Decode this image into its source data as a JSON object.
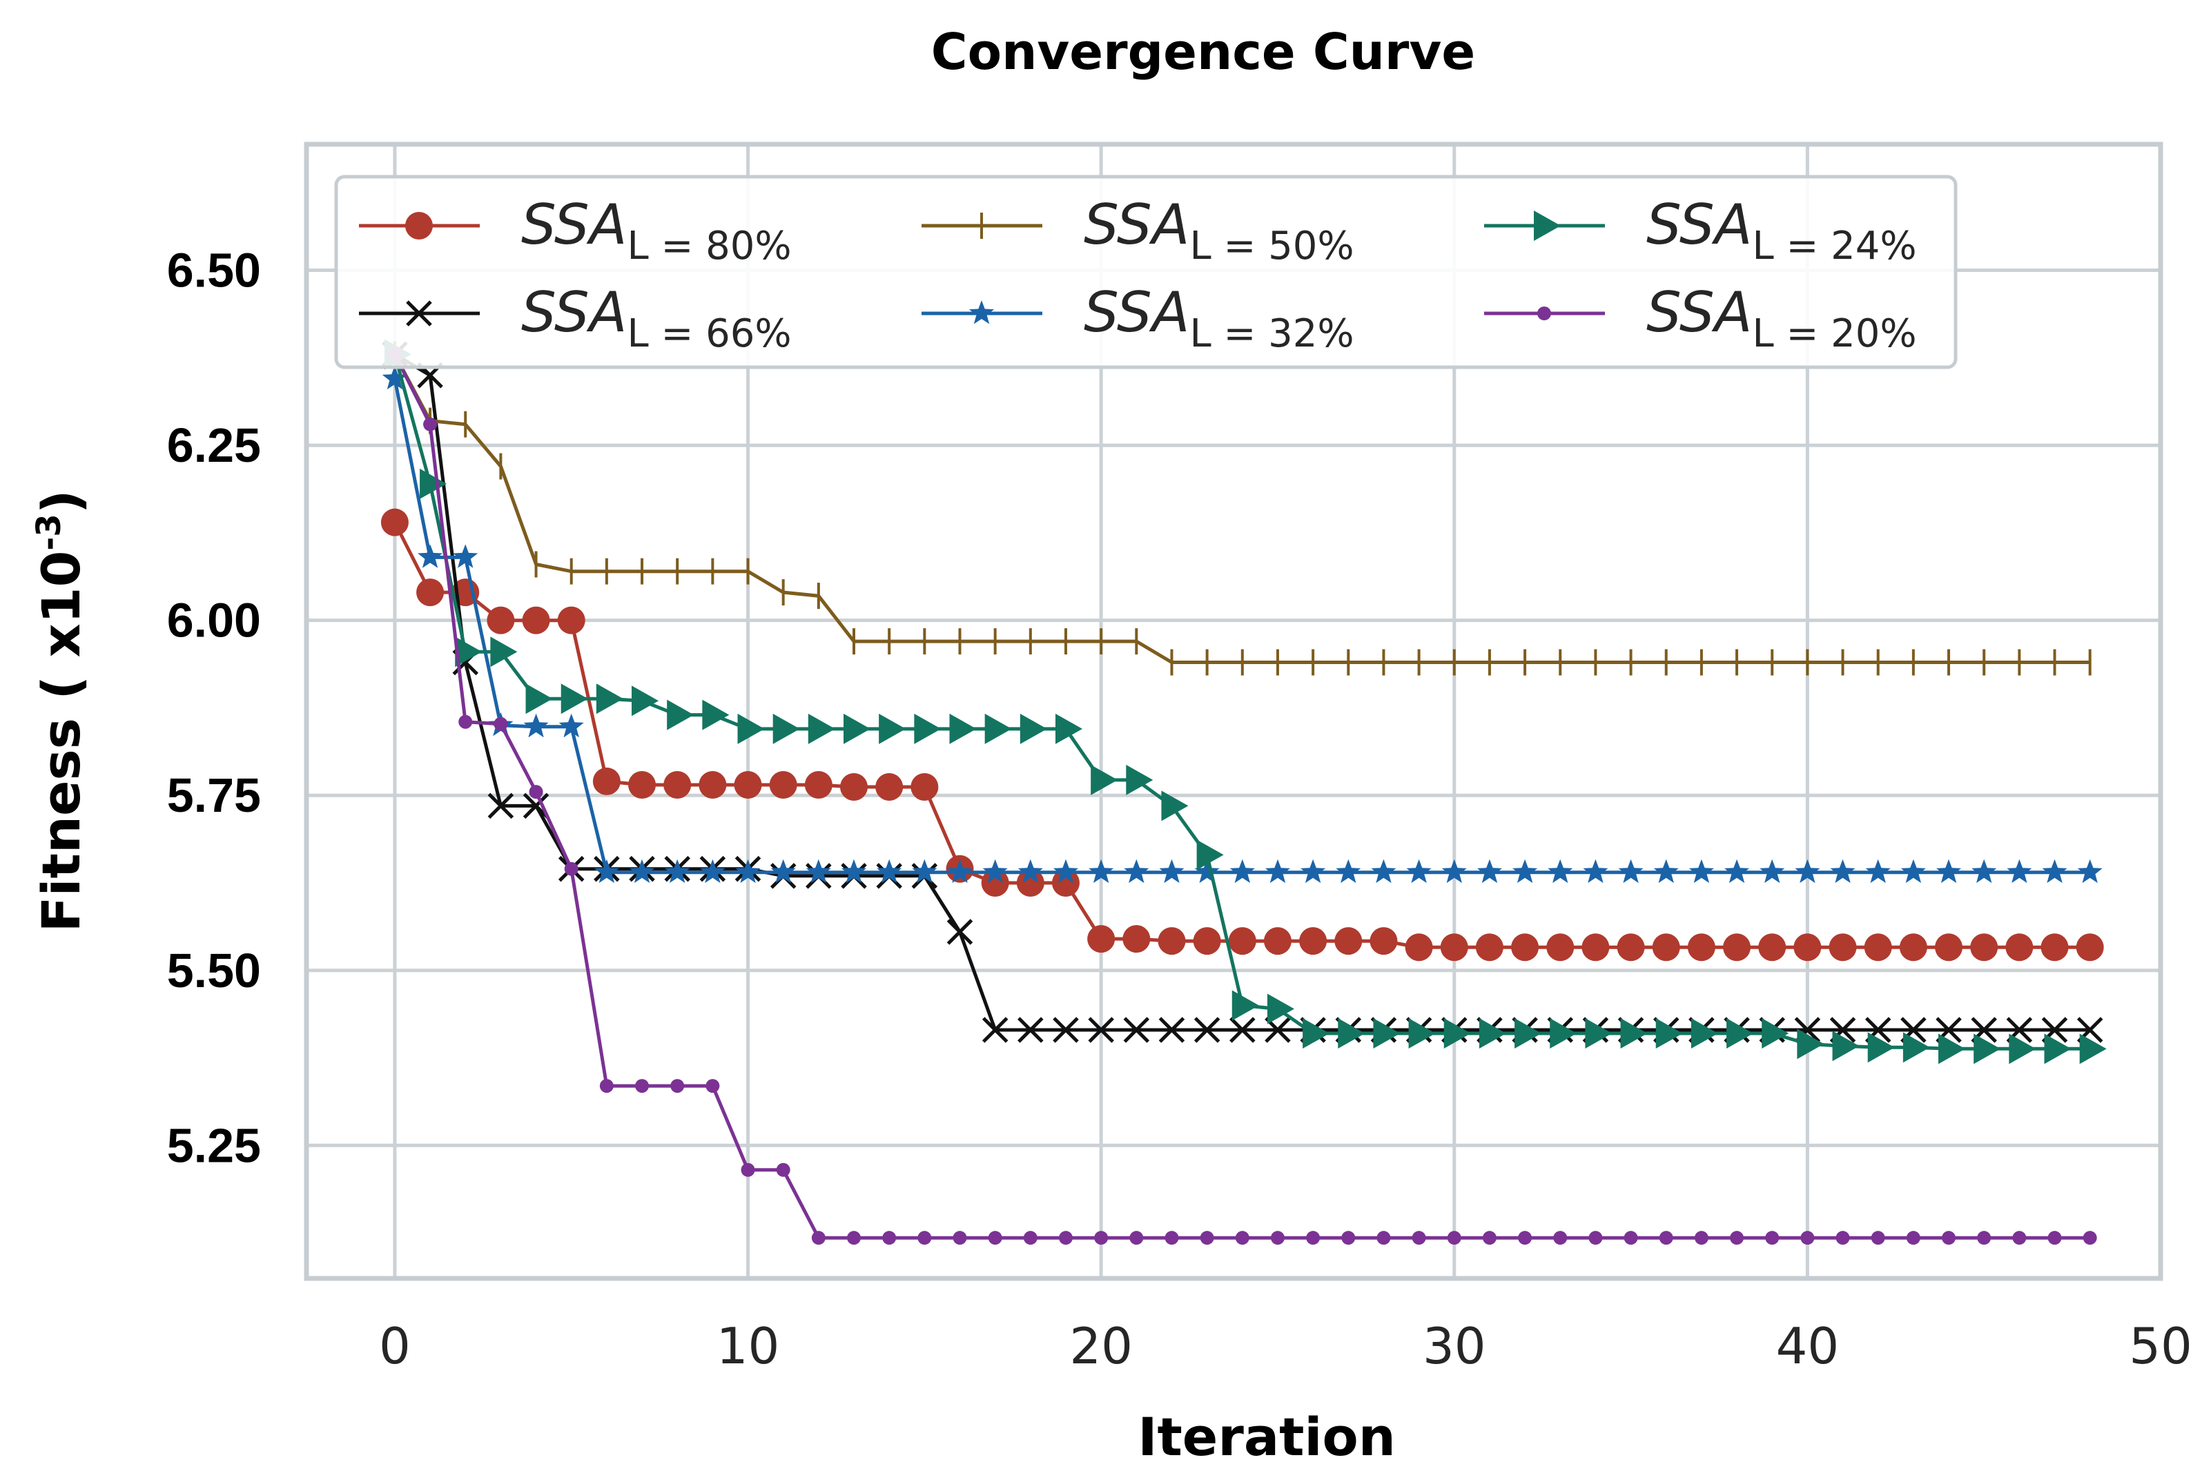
{
  "chart_data": {
    "type": "line",
    "title": "Convergence Curve",
    "xlabel": "Iteration",
    "ylabel": "Fitness ( x10",
    "ylabel_exponent": "-3",
    "ylabel_close": ")",
    "xlim": [
      -2.5,
      50
    ],
    "ylim": [
      5.06,
      6.68
    ],
    "xticks": [
      0,
      10,
      20,
      30,
      40,
      50
    ],
    "xtick_labels": [
      "0",
      "10",
      "20",
      "30",
      "40",
      "50"
    ],
    "yticks": [
      5.25,
      5.5,
      5.75,
      6.0,
      6.25,
      6.5
    ],
    "ytick_labels": [
      "5.25",
      "5.50",
      "5.75",
      "6.00",
      "6.25",
      "6.50"
    ],
    "grid": true,
    "legend_position": "top",
    "series": [
      {
        "name": "SSA",
        "sub": "L = 80%",
        "color": "#b03a2e",
        "marker": "circle",
        "values": [
          6.14,
          6.04,
          6.04,
          6.0,
          6.0,
          6.0,
          5.77,
          5.765,
          5.765,
          5.765,
          5.765,
          5.765,
          5.765,
          5.762,
          5.762,
          5.762,
          5.645,
          5.625,
          5.625,
          5.625,
          5.545,
          5.545,
          5.542,
          5.542,
          5.542,
          5.542,
          5.542,
          5.542,
          5.542,
          5.533,
          5.533,
          5.533,
          5.533,
          5.533,
          5.533,
          5.533,
          5.533,
          5.533,
          5.533,
          5.533,
          5.533,
          5.533,
          5.533,
          5.533,
          5.533,
          5.533,
          5.533,
          5.533,
          5.533
        ]
      },
      {
        "name": "SSA",
        "sub": "L = 66%",
        "color": "#111111",
        "marker": "x",
        "values": [
          6.38,
          6.35,
          5.94,
          5.735,
          5.735,
          5.645,
          5.645,
          5.645,
          5.645,
          5.645,
          5.645,
          5.635,
          5.635,
          5.635,
          5.635,
          5.635,
          5.555,
          5.415,
          5.415,
          5.415,
          5.415,
          5.415,
          5.415,
          5.415,
          5.415,
          5.415,
          5.415,
          5.415,
          5.415,
          5.415,
          5.415,
          5.415,
          5.415,
          5.415,
          5.415,
          5.415,
          5.415,
          5.415,
          5.415,
          5.415,
          5.415,
          5.415,
          5.415,
          5.415,
          5.415,
          5.415,
          5.415,
          5.415,
          5.415
        ]
      },
      {
        "name": "SSA",
        "sub": "L = 50%",
        "color": "#7d5c1e",
        "marker": "plus",
        "values": [
          6.38,
          6.285,
          6.28,
          6.22,
          6.08,
          6.07,
          6.07,
          6.07,
          6.07,
          6.07,
          6.07,
          6.04,
          6.035,
          5.97,
          5.97,
          5.97,
          5.97,
          5.97,
          5.97,
          5.97,
          5.97,
          5.97,
          5.94,
          5.94,
          5.94,
          5.94,
          5.94,
          5.94,
          5.94,
          5.94,
          5.94,
          5.94,
          5.94,
          5.94,
          5.94,
          5.94,
          5.94,
          5.94,
          5.94,
          5.94,
          5.94,
          5.94,
          5.94,
          5.94,
          5.94,
          5.94,
          5.94,
          5.94,
          5.94
        ]
      },
      {
        "name": "SSA",
        "sub": "L = 32%",
        "color": "#1b63a8",
        "marker": "star",
        "values": [
          6.345,
          6.09,
          6.09,
          5.85,
          5.848,
          5.848,
          5.64,
          5.64,
          5.64,
          5.64,
          5.64,
          5.64,
          5.64,
          5.64,
          5.64,
          5.64,
          5.64,
          5.64,
          5.64,
          5.64,
          5.64,
          5.64,
          5.64,
          5.64,
          5.64,
          5.64,
          5.64,
          5.64,
          5.64,
          5.64,
          5.64,
          5.64,
          5.64,
          5.64,
          5.64,
          5.64,
          5.64,
          5.64,
          5.64,
          5.64,
          5.64,
          5.64,
          5.64,
          5.64,
          5.64,
          5.64,
          5.64,
          5.64,
          5.64
        ]
      },
      {
        "name": "SSA",
        "sub": "L = 24%",
        "color": "#137560",
        "marker": "triangle-right",
        "values": [
          6.38,
          6.195,
          5.955,
          5.955,
          5.888,
          5.888,
          5.888,
          5.885,
          5.865,
          5.865,
          5.845,
          5.845,
          5.845,
          5.845,
          5.845,
          5.845,
          5.845,
          5.845,
          5.845,
          5.845,
          5.772,
          5.772,
          5.735,
          5.665,
          5.45,
          5.445,
          5.41,
          5.41,
          5.41,
          5.41,
          5.41,
          5.41,
          5.41,
          5.41,
          5.41,
          5.41,
          5.41,
          5.41,
          5.41,
          5.41,
          5.395,
          5.392,
          5.39,
          5.39,
          5.388,
          5.388,
          5.388,
          5.388,
          5.388
        ]
      },
      {
        "name": "SSA",
        "sub": "L = 20%",
        "color": "#7b3294",
        "marker": "dot",
        "values": [
          6.38,
          6.28,
          5.855,
          5.852,
          5.755,
          5.645,
          5.335,
          5.335,
          5.335,
          5.335,
          5.215,
          5.215,
          5.118,
          5.118,
          5.118,
          5.118,
          5.118,
          5.118,
          5.118,
          5.118,
          5.118,
          5.118,
          5.118,
          5.118,
          5.118,
          5.118,
          5.118,
          5.118,
          5.118,
          5.118,
          5.118,
          5.118,
          5.118,
          5.118,
          5.118,
          5.118,
          5.118,
          5.118,
          5.118,
          5.118,
          5.118,
          5.118,
          5.118,
          5.118,
          5.118,
          5.118,
          5.118,
          5.118,
          5.118
        ]
      }
    ],
    "legend_order": [
      0,
      2,
      4,
      1,
      3,
      5
    ]
  }
}
